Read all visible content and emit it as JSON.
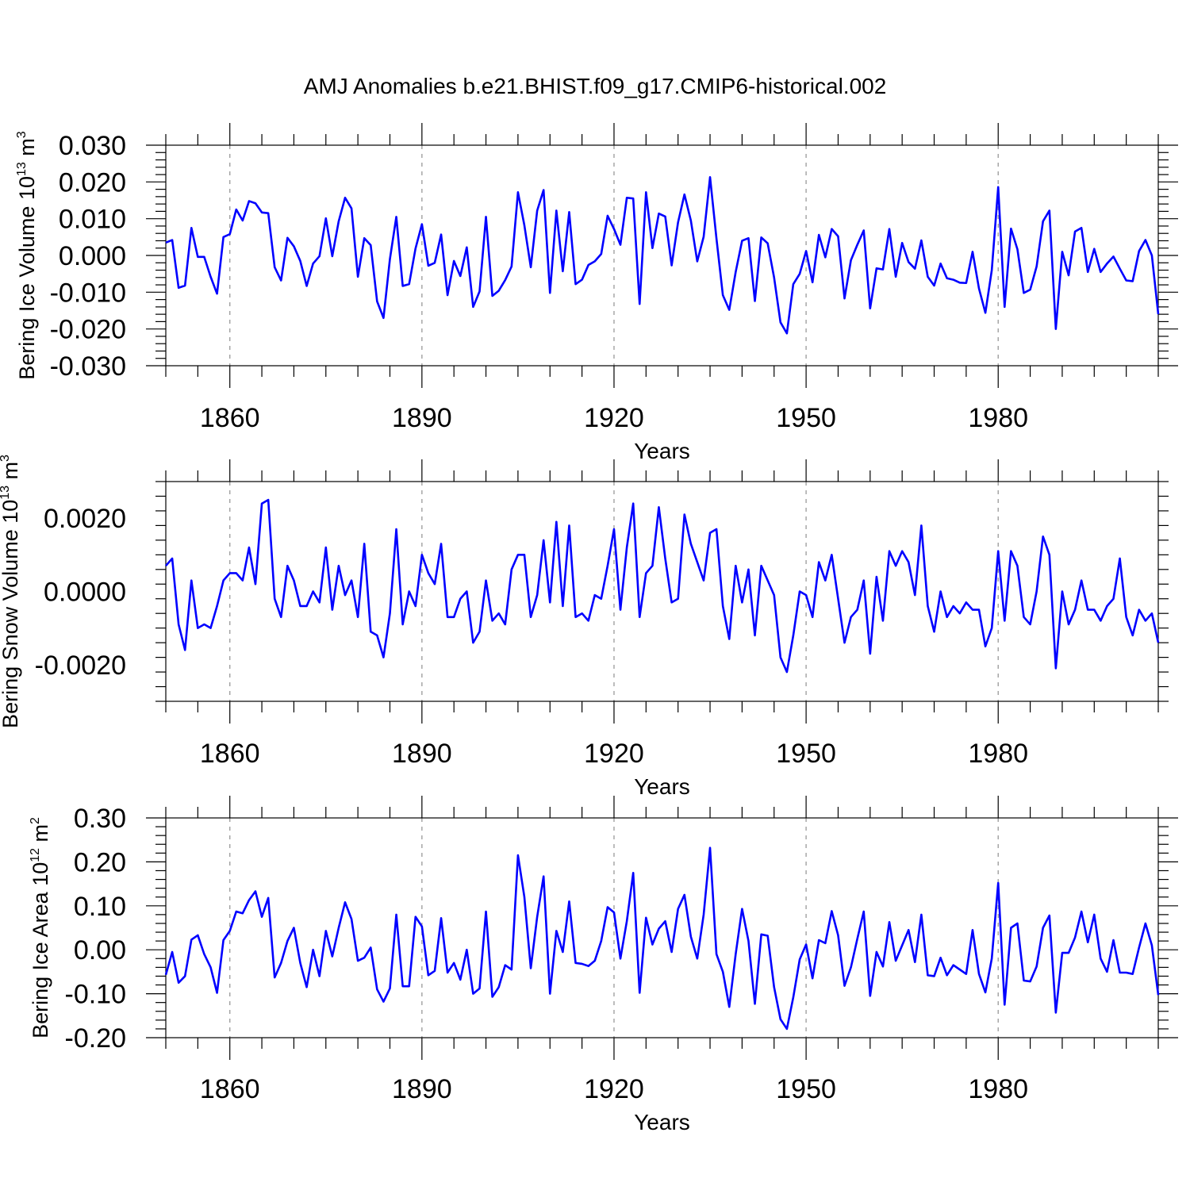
{
  "title": "AMJ Anomalies b.e21.BHIST.f09_g17.CMIP6-historical.002",
  "colors": {
    "series": "#0000ff",
    "axis": "#000000",
    "grid": "#a0a0a0"
  },
  "chart_data": [
    {
      "type": "line",
      "title": "AMJ Anomalies b.e21.BHIST.f09_g17.CMIP6-historical.002",
      "xlabel": "Years",
      "ylabel": "Bering Ice Volume 10",
      "yunit_exp": "13",
      "yunit_base": "m",
      "yunit_pow": "3",
      "xlim": [
        1850,
        2005
      ],
      "ylim": [
        -0.03,
        0.03
      ],
      "xticks": [
        1860,
        1890,
        1920,
        1950,
        1980
      ],
      "yticks": [
        -0.03,
        -0.02,
        -0.01,
        0.0,
        0.01,
        0.02,
        0.03
      ],
      "ytick_labels": [
        "-0.030",
        "-0.020",
        "-0.010",
        "0.000",
        "0.010",
        "0.020",
        "0.030"
      ],
      "x_start": 1850,
      "values": [
        0.0035,
        0.0042,
        -0.0088,
        -0.0082,
        0.0075,
        -0.0004,
        -0.0004,
        -0.0058,
        -0.0104,
        0.005,
        0.0058,
        0.0125,
        0.0095,
        0.0148,
        0.0142,
        0.0117,
        0.0115,
        -0.0032,
        -0.0068,
        0.0048,
        0.0025,
        -0.0015,
        -0.0083,
        -0.0022,
        -0.0002,
        0.0101,
        -0.0002,
        0.0093,
        0.0157,
        0.0128,
        -0.0058,
        0.0047,
        0.0028,
        -0.0125,
        -0.017,
        -0.001,
        0.0105,
        -0.0083,
        -0.0078,
        0.0019,
        0.0085,
        -0.0028,
        -0.002,
        0.0057,
        -0.0108,
        -0.0015,
        -0.0056,
        0.0022,
        -0.014,
        -0.0098,
        0.0105,
        -0.011,
        -0.0096,
        -0.0067,
        -0.003,
        0.0172,
        0.0082,
        -0.0032,
        0.0122,
        0.0178,
        -0.0102,
        0.0122,
        -0.0043,
        0.0118,
        -0.0078,
        -0.0066,
        -0.0026,
        -0.0016,
        0.0004,
        0.0108,
        0.0072,
        0.0029,
        0.0157,
        0.0155,
        -0.0132,
        0.0172,
        0.002,
        0.0114,
        0.0106,
        -0.0027,
        0.009,
        0.0166,
        0.0095,
        -0.0016,
        0.0051,
        0.0213,
        0.0046,
        -0.0108,
        -0.0148,
        -0.0045,
        0.004,
        0.0047,
        -0.0124,
        0.0049,
        0.0033,
        -0.006,
        -0.0182,
        -0.0212,
        -0.0078,
        -0.005,
        0.0012,
        -0.0073,
        0.0056,
        -0.0005,
        0.0072,
        0.0052,
        -0.0117,
        -0.0013,
        0.0029,
        0.0068,
        -0.0144,
        -0.0035,
        -0.0038,
        0.0072,
        -0.0058,
        0.0034,
        -0.0018,
        -0.0036,
        0.0041,
        -0.0058,
        -0.0082,
        -0.0022,
        -0.0062,
        -0.0066,
        -0.0074,
        -0.0075,
        0.001,
        -0.009,
        -0.0156,
        -0.004,
        0.0186,
        -0.014,
        0.0073,
        0.0017,
        -0.0102,
        -0.0093,
        -0.003,
        0.0093,
        0.0122,
        -0.02,
        0.001,
        -0.0054,
        0.0065,
        0.0075,
        -0.0045,
        0.0018,
        -0.0045,
        -0.0022,
        -0.0003,
        -0.0036,
        -0.0068,
        -0.007,
        0.0012,
        0.0042,
        0.0,
        -0.016
      ]
    },
    {
      "type": "line",
      "xlabel": "Years",
      "ylabel": "Bering Snow Volume 10",
      "yunit_exp": "13",
      "yunit_base": "m",
      "yunit_pow": "3",
      "xlim": [
        1850,
        2005
      ],
      "ylim": [
        -0.003,
        0.003
      ],
      "xticks": [
        1860,
        1890,
        1920,
        1950,
        1980
      ],
      "yticks": [
        -0.002,
        0.0,
        0.002
      ],
      "ytick_labels": [
        "-0.0020",
        "0.0000",
        "0.0020"
      ],
      "x_start": 1850,
      "values": [
        0.0007,
        0.0009,
        -0.0009,
        -0.0016,
        0.0003,
        -0.001,
        -0.0009,
        -0.001,
        -0.0004,
        0.0003,
        0.0005,
        0.0005,
        0.0003,
        0.0012,
        0.0002,
        0.0024,
        0.0025,
        -0.0002,
        -0.0007,
        0.0007,
        0.0003,
        -0.0004,
        -0.0004,
        0.0,
        -0.0003,
        0.0012,
        -0.0005,
        0.0007,
        -0.0001,
        0.0003,
        -0.0007,
        0.0013,
        -0.0011,
        -0.0012,
        -0.0018,
        -0.0006,
        0.0017,
        -0.0009,
        0.0,
        -0.0004,
        0.001,
        0.0005,
        0.0002,
        0.0013,
        -0.0007,
        -0.0007,
        -0.0002,
        0.0,
        -0.0014,
        -0.0011,
        0.0003,
        -0.0008,
        -0.0006,
        -0.0009,
        0.0006,
        0.001,
        0.001,
        -0.0007,
        -0.0001,
        0.0014,
        -0.0003,
        0.0019,
        -0.0004,
        0.0018,
        -0.0007,
        -0.0006,
        -0.0008,
        -0.0001,
        -0.0002,
        0.0007,
        0.0017,
        -0.0005,
        0.0012,
        0.0024,
        -0.0007,
        0.0005,
        0.0007,
        0.0023,
        0.0009,
        -0.0003,
        -0.0002,
        0.0021,
        0.0013,
        0.0008,
        0.0003,
        0.0016,
        0.0017,
        -0.0004,
        -0.0013,
        0.0007,
        -0.0003,
        0.0006,
        -0.0012,
        0.0007,
        0.0003,
        -0.0001,
        -0.0018,
        -0.0022,
        -0.0012,
        0.0,
        -0.0001,
        -0.0007,
        0.0008,
        0.0003,
        0.001,
        -0.0002,
        -0.0014,
        -0.0007,
        -0.0005,
        0.0003,
        -0.0017,
        0.0004,
        -0.0008,
        0.0011,
        0.0007,
        0.0011,
        0.0008,
        -0.0001,
        0.0018,
        -0.0004,
        -0.0011,
        0.0,
        -0.0007,
        -0.0004,
        -0.0006,
        -0.0003,
        -0.0005,
        -0.0005,
        -0.0015,
        -0.001,
        0.0011,
        -0.0008,
        0.0011,
        0.0007,
        -0.0007,
        -0.0009,
        0.0,
        0.0015,
        0.001,
        -0.0021,
        0.0,
        -0.0009,
        -0.0005,
        0.0003,
        -0.0005,
        -0.0005,
        -0.0008,
        -0.0004,
        -0.0002,
        0.0009,
        -0.0007,
        -0.0012,
        -0.0005,
        -0.0008,
        -0.0006,
        -0.0014
      ]
    },
    {
      "type": "line",
      "xlabel": "Years",
      "ylabel": "Bering Ice Area 10",
      "yunit_exp": "12",
      "yunit_base": "m",
      "yunit_pow": "2",
      "xlim": [
        1850,
        2005
      ],
      "ylim": [
        -0.2,
        0.3
      ],
      "xticks": [
        1860,
        1890,
        1920,
        1950,
        1980
      ],
      "yticks": [
        -0.2,
        -0.1,
        0.0,
        0.1,
        0.2,
        0.3
      ],
      "ytick_labels": [
        "-0.20",
        "-0.10",
        "0.00",
        "0.10",
        "0.20",
        "0.30"
      ],
      "x_start": 1850,
      "values": [
        -0.057,
        -0.005,
        -0.075,
        -0.06,
        0.023,
        0.033,
        -0.01,
        -0.04,
        -0.098,
        0.022,
        0.043,
        0.087,
        0.083,
        0.113,
        0.133,
        0.075,
        0.118,
        -0.063,
        -0.03,
        0.02,
        0.05,
        -0.03,
        -0.085,
        0.0,
        -0.06,
        0.043,
        -0.015,
        0.05,
        0.108,
        0.07,
        -0.025,
        -0.018,
        0.005,
        -0.09,
        -0.118,
        -0.088,
        0.08,
        -0.083,
        -0.083,
        0.075,
        0.053,
        -0.058,
        -0.048,
        0.072,
        -0.052,
        -0.03,
        -0.068,
        0.0,
        -0.1,
        -0.088,
        0.087,
        -0.107,
        -0.085,
        -0.035,
        -0.045,
        0.215,
        0.12,
        -0.042,
        0.075,
        0.167,
        -0.1,
        0.043,
        -0.005,
        0.11,
        -0.03,
        -0.032,
        -0.037,
        -0.025,
        0.02,
        0.097,
        0.085,
        -0.02,
        0.065,
        0.175,
        -0.098,
        0.073,
        0.012,
        0.048,
        0.065,
        -0.005,
        0.093,
        0.125,
        0.03,
        -0.02,
        0.08,
        0.232,
        -0.01,
        -0.05,
        -0.13,
        -0.01,
        0.093,
        0.02,
        -0.123,
        0.035,
        0.032,
        -0.085,
        -0.158,
        -0.18,
        -0.108,
        -0.022,
        0.012,
        -0.065,
        0.022,
        0.015,
        0.088,
        0.033,
        -0.082,
        -0.04,
        0.025,
        0.087,
        -0.105,
        -0.005,
        -0.038,
        0.063,
        -0.025,
        0.01,
        0.045,
        -0.028,
        0.08,
        -0.058,
        -0.06,
        -0.018,
        -0.058,
        -0.035,
        -0.045,
        -0.055,
        0.045,
        -0.055,
        -0.097,
        -0.02,
        0.152,
        -0.125,
        0.05,
        0.06,
        -0.07,
        -0.072,
        -0.038,
        0.05,
        0.078,
        -0.143,
        -0.007,
        -0.007,
        0.028,
        0.087,
        0.017,
        0.08,
        -0.02,
        -0.05,
        0.022,
        -0.052,
        -0.052,
        -0.055,
        0.005,
        0.06,
        0.01,
        -0.103
      ]
    }
  ]
}
